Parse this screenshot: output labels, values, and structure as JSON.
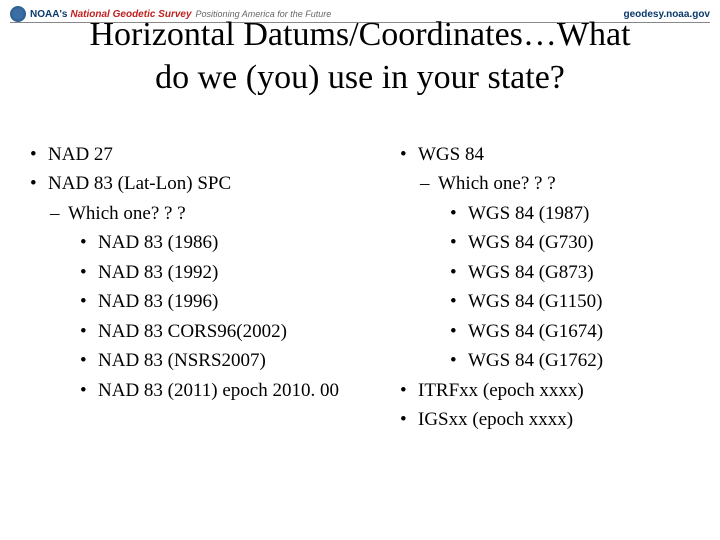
{
  "header": {
    "noaa": "NOAA's",
    "ngs": "National Geodetic Survey",
    "tagline": "Positioning America for the Future",
    "url": "geodesy.noaa.gov"
  },
  "title_line1": "Horizontal Datums/Coordinates…What",
  "title_line2": "do we (you) use in your state?",
  "left": {
    "items": [
      "NAD 27",
      "NAD 83 (Lat-Lon) SPC"
    ],
    "sub_prompt": "Which one? ? ?",
    "sub_items": [
      "NAD 83 (1986)",
      "NAD 83 (1992)",
      "NAD 83 (1996)",
      "NAD 83 CORS96(2002)",
      "NAD 83 (NSRS2007)",
      "NAD 83 (2011) epoch 2010. 00"
    ]
  },
  "right": {
    "top": "WGS 84",
    "sub_prompt": "Which one? ? ?",
    "sub_items": [
      "WGS 84 (1987)",
      "WGS 84 (G730)",
      "WGS 84 (G873)",
      "WGS 84 (G1150)",
      "WGS 84 (G1674)",
      "WGS 84 (G1762)"
    ],
    "tail": [
      "ITRFxx (epoch xxxx)",
      "IGSxx (epoch xxxx)"
    ]
  }
}
